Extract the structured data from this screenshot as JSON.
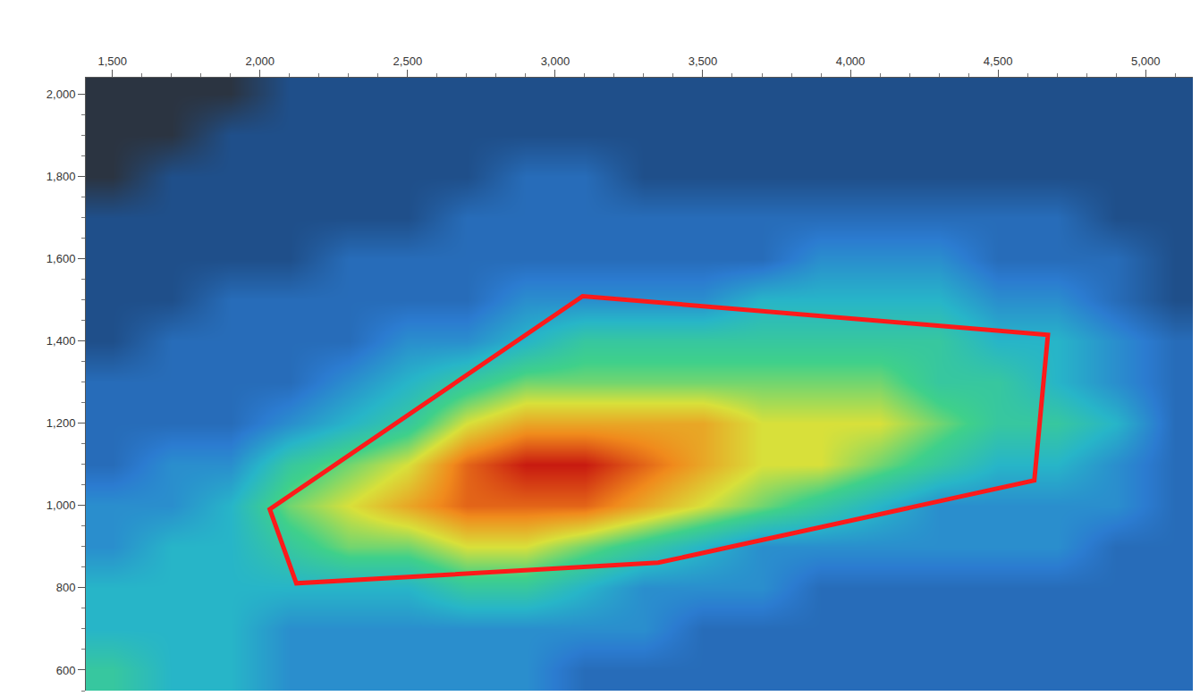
{
  "chart_data": {
    "type": "heatmap",
    "x": [
      1500,
      1700,
      1900,
      2100,
      2300,
      2500,
      2700,
      2900,
      3100,
      3300,
      3500,
      3700,
      3900,
      4100,
      4300,
      4500,
      4700,
      4900,
      5100
    ],
    "y": [
      600,
      700,
      800,
      900,
      1000,
      1100,
      1200,
      1300,
      1400,
      1500,
      1600,
      1700,
      1800,
      1900,
      2000
    ],
    "z": [
      [
        5,
        4,
        4,
        3,
        3,
        3,
        3,
        3,
        2,
        2,
        2,
        2,
        2,
        2,
        2,
        2,
        2,
        2,
        2
      ],
      [
        4,
        4,
        4,
        3,
        3,
        3,
        3,
        3,
        3,
        3,
        2,
        2,
        2,
        2,
        2,
        2,
        2,
        2,
        2
      ],
      [
        4,
        4,
        4,
        4,
        4,
        4,
        5,
        5,
        4,
        3,
        3,
        3,
        2,
        2,
        2,
        2,
        2,
        2,
        2
      ],
      [
        3,
        4,
        4,
        5,
        6,
        6,
        7,
        7,
        6,
        5,
        4,
        3,
        3,
        3,
        3,
        3,
        3,
        2,
        2
      ],
      [
        3,
        3,
        4,
        6,
        7,
        8,
        9,
        9,
        9,
        8,
        7,
        6,
        5,
        4,
        3,
        3,
        3,
        3,
        2
      ],
      [
        2,
        3,
        3,
        5,
        6,
        7,
        9,
        10,
        10,
        9,
        8,
        7,
        7,
        6,
        5,
        4,
        4,
        3,
        2
      ],
      [
        2,
        2,
        2,
        3,
        4,
        5,
        7,
        8,
        8,
        8,
        8,
        7,
        7,
        7,
        6,
        5,
        5,
        4,
        2
      ],
      [
        2,
        2,
        2,
        2,
        3,
        4,
        5,
        6,
        6,
        6,
        6,
        6,
        6,
        6,
        5,
        5,
        4,
        3,
        2
      ],
      [
        1,
        2,
        2,
        2,
        2,
        3,
        3,
        4,
        5,
        5,
        5,
        5,
        5,
        5,
        5,
        4,
        4,
        3,
        2
      ],
      [
        1,
        1,
        2,
        2,
        2,
        2,
        2,
        3,
        3,
        3,
        3,
        4,
        4,
        4,
        4,
        3,
        3,
        2,
        1
      ],
      [
        1,
        1,
        1,
        1,
        2,
        2,
        2,
        2,
        2,
        2,
        2,
        2,
        3,
        3,
        3,
        2,
        2,
        2,
        1
      ],
      [
        1,
        1,
        1,
        1,
        1,
        1,
        2,
        2,
        2,
        2,
        2,
        2,
        2,
        2,
        2,
        2,
        2,
        1,
        1
      ],
      [
        0,
        1,
        1,
        1,
        1,
        1,
        1,
        2,
        2,
        1,
        1,
        1,
        1,
        1,
        1,
        1,
        1,
        1,
        1
      ],
      [
        0,
        0,
        1,
        1,
        1,
        1,
        1,
        1,
        1,
        1,
        1,
        1,
        1,
        1,
        1,
        1,
        1,
        1,
        1
      ],
      [
        0,
        0,
        0,
        1,
        1,
        1,
        1,
        1,
        1,
        1,
        1,
        1,
        1,
        1,
        1,
        1,
        1,
        1,
        1
      ]
    ],
    "zlim": [
      0,
      10
    ],
    "xlim": [
      1410,
      5160
    ],
    "ylim": [
      550,
      2040
    ],
    "xticks": [
      {
        "value": 1500,
        "label": "1,500"
      },
      {
        "value": 2000,
        "label": "2,000"
      },
      {
        "value": 2500,
        "label": "2,500"
      },
      {
        "value": 3000,
        "label": "3,000"
      },
      {
        "value": 3500,
        "label": "3,500"
      },
      {
        "value": 4000,
        "label": "4,000"
      },
      {
        "value": 4500,
        "label": "4,500"
      },
      {
        "value": 5000,
        "label": "5,000"
      }
    ],
    "yticks": [
      600,
      800,
      {
        "value": 1000,
        "label": "1,000"
      },
      {
        "value": 1200,
        "label": "1,200"
      },
      {
        "value": 1400,
        "label": "1,400"
      },
      {
        "value": 1600,
        "label": "1,600"
      },
      {
        "value": 1800,
        "label": "1,800"
      },
      {
        "value": 2000,
        "label": "2,000"
      }
    ],
    "region": {
      "x": [
        2033,
        2123,
        3349,
        4623,
        4669,
        3093
      ],
      "y": [
        991,
        811,
        861,
        1061,
        1415,
        1509
      ],
      "color": "#ff1a1a"
    }
  }
}
